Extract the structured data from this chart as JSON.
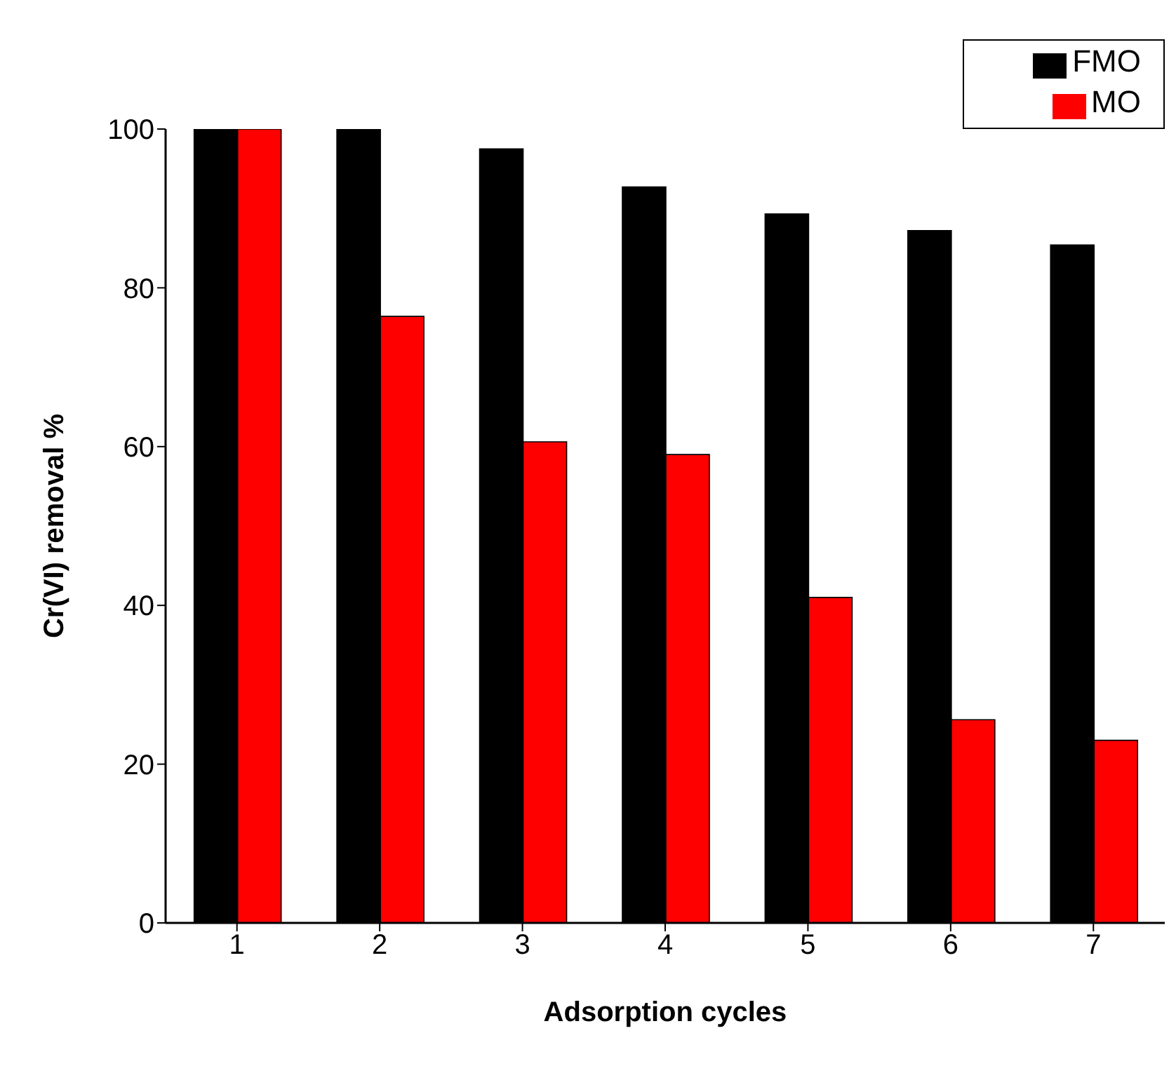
{
  "chart_data": {
    "type": "bar",
    "xlabel": "Adsorption cycles",
    "ylabel": "Cr(VI) removal %",
    "categories": [
      "1",
      "2",
      "3",
      "4",
      "5",
      "6",
      "7"
    ],
    "series": [
      {
        "name": "FMO",
        "color": "#000000",
        "values": [
          100,
          100,
          97.5,
          92.7,
          89.3,
          87.2,
          85.4
        ]
      },
      {
        "name": "MO",
        "color": "#ff0000",
        "values": [
          100,
          76.4,
          60.6,
          59.0,
          41.0,
          25.6,
          23.0
        ]
      }
    ],
    "ylim": [
      0,
      100
    ],
    "yticks": [
      0,
      20,
      40,
      60,
      80,
      100
    ],
    "grid": false,
    "legend": "top right"
  }
}
